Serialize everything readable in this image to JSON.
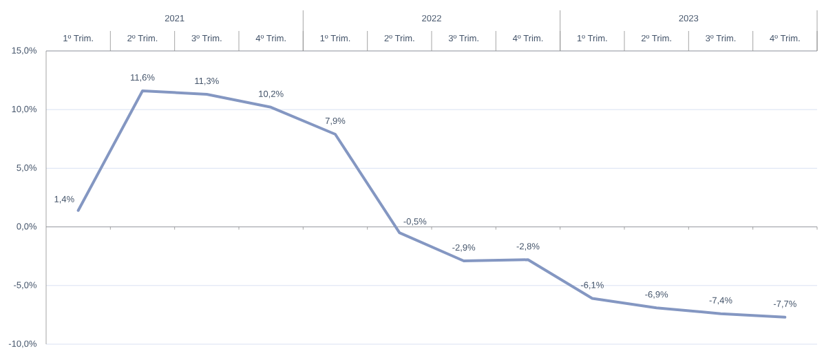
{
  "chart_data": {
    "type": "line",
    "categories": [
      "1º Trim.",
      "2º Trim.",
      "3º Trim.",
      "4º Trim.",
      "1º Trim.",
      "2º Trim.",
      "3º Trim.",
      "4º Trim.",
      "1º Trim.",
      "2º Trim.",
      "3º Trim.",
      "4º Trim."
    ],
    "x2lim": [
      2020.5,
      2023.5
    ],
    "x2ticks": [
      2021,
      {
        "value": 2021.5,
        "label": null
      },
      2022,
      {
        "value": 2022.5,
        "label": null
      },
      2023,
      {
        "value": 2023.5,
        "label": null
      }
    ],
    "series": [
      {
        "color": "#8497C2",
        "values": [
          1.4,
          11.6,
          11.3,
          10.2,
          7.9,
          -0.5,
          -2.9,
          -2.8,
          -6.1,
          -6.9,
          -7.4,
          -7.7
        ],
        "value_labels": [
          "1,4%",
          "11,6%",
          "11,3%",
          "10,2%",
          "7,9%",
          "-0,5%",
          "-2,9%",
          "-2,8%",
          "-6,1%",
          "-6,9%",
          "-7,4%",
          "-7,7%"
        ]
      }
    ],
    "ylim": [
      -10,
      15
    ],
    "yticks": [
      {
        "value": -10,
        "label": "-10,0%"
      },
      {
        "value": -5,
        "label": "-5,0%"
      },
      {
        "value": 0,
        "label": "0,0%"
      },
      {
        "value": 5,
        "label": "5,0%"
      },
      {
        "value": 10,
        "label": "10,0%"
      },
      {
        "value": 15,
        "label": "15,0%"
      }
    ],
    "grid": "y",
    "marker": "none",
    "line_style": "solid"
  }
}
